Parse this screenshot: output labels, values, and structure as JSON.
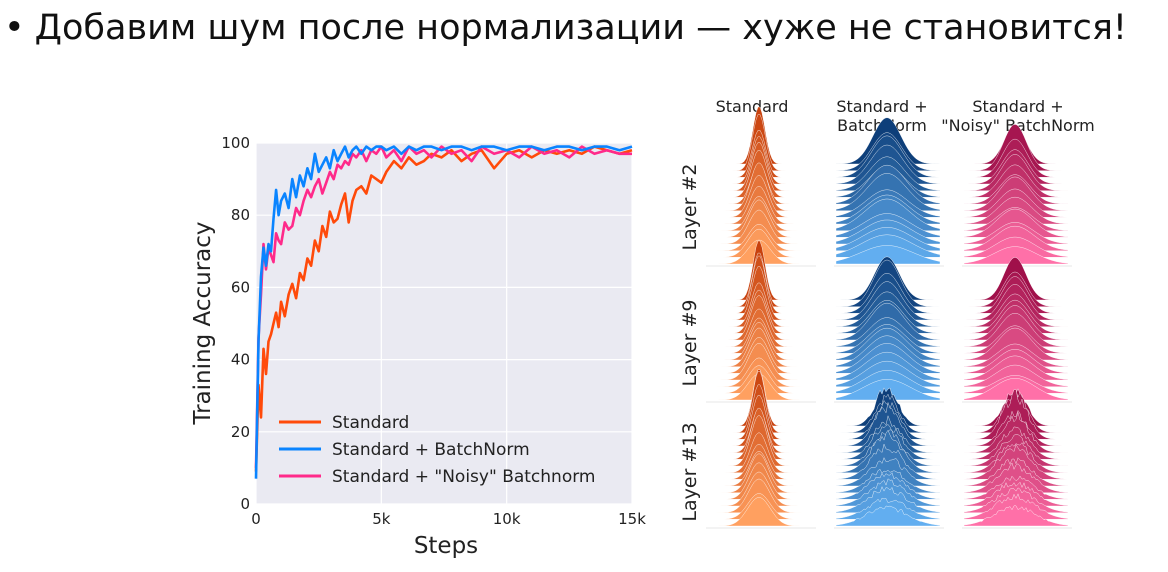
{
  "slide": {
    "title": "Добавим шум после нормализации — хуже не становится!"
  },
  "colors": {
    "standard": "#ff4a0a",
    "batchnorm": "#0a84ff",
    "noisy": "#ff2a8a",
    "plot_bg": "#eaeaf2",
    "grid": "#ffffff"
  },
  "chart_data": [
    {
      "type": "line",
      "title": "",
      "xlabel": "Steps",
      "ylabel": "Training Accuracy",
      "xlim": [
        0,
        15000
      ],
      "ylim": [
        0,
        100
      ],
      "xticks": [
        {
          "value": 0,
          "label": "0"
        },
        {
          "value": 5000,
          "label": "5k"
        },
        {
          "value": 10000,
          "label": "10k"
        },
        {
          "value": 15000,
          "label": "15k"
        }
      ],
      "yticks": [
        0,
        20,
        40,
        60,
        80,
        100
      ],
      "grid": true,
      "legend": "bottom-left",
      "series": [
        {
          "name": "Standard",
          "color": "#ff4a0a",
          "x": [
            0,
            100,
            200,
            300,
            400,
            500,
            600,
            700,
            800,
            900,
            1000,
            1150,
            1300,
            1450,
            1600,
            1750,
            1900,
            2050,
            2200,
            2350,
            2500,
            2650,
            2800,
            2950,
            3100,
            3250,
            3400,
            3550,
            3700,
            3850,
            4000,
            4200,
            4400,
            4600,
            4800,
            5000,
            5200,
            5500,
            5800,
            6100,
            6400,
            6700,
            7000,
            7400,
            7800,
            8200,
            8600,
            9000,
            9500,
            10000,
            10500,
            11000,
            11500,
            12000,
            12500,
            13000,
            13500,
            14000,
            14500,
            15000
          ],
          "y": [
            9,
            33,
            24,
            43,
            36,
            45,
            47,
            50,
            53,
            49,
            56,
            52,
            58,
            61,
            57,
            64,
            62,
            68,
            66,
            73,
            70,
            77,
            74,
            81,
            78,
            79,
            83,
            86,
            78,
            84,
            87,
            88,
            86,
            91,
            90,
            89,
            92,
            95,
            93,
            96,
            94,
            95,
            97,
            96,
            98,
            95,
            97,
            98,
            93,
            97,
            98,
            96,
            98,
            97,
            98,
            97,
            99,
            98,
            97,
            98
          ]
        },
        {
          "name": "Standard + BatchNorm",
          "color": "#0a84ff",
          "x": [
            0,
            100,
            200,
            300,
            400,
            500,
            600,
            700,
            800,
            900,
            1000,
            1150,
            1300,
            1450,
            1600,
            1750,
            1900,
            2050,
            2200,
            2350,
            2500,
            2650,
            2800,
            2950,
            3100,
            3250,
            3400,
            3550,
            3700,
            3850,
            4000,
            4200,
            4400,
            4600,
            4800,
            5000,
            5200,
            5500,
            5800,
            6100,
            6400,
            6700,
            7000,
            7400,
            7800,
            8200,
            8600,
            9000,
            9500,
            10000,
            10500,
            11000,
            11500,
            12000,
            12500,
            13000,
            13500,
            14000,
            14500,
            15000
          ],
          "y": [
            7,
            45,
            63,
            71,
            66,
            72,
            70,
            79,
            87,
            80,
            84,
            86,
            82,
            90,
            85,
            91,
            88,
            93,
            90,
            97,
            92,
            94,
            96,
            93,
            98,
            95,
            97,
            99,
            96,
            98,
            99,
            97,
            99,
            98,
            99,
            99,
            98,
            99,
            97,
            99,
            98,
            99,
            99,
            98,
            99,
            99,
            98,
            99,
            99,
            98,
            99,
            99,
            98,
            99,
            99,
            98,
            99,
            99,
            98,
            99
          ]
        },
        {
          "name": "Standard + \"Noisy\" Batchnorm",
          "color": "#ff2a8a",
          "x": [
            0,
            100,
            200,
            300,
            400,
            500,
            600,
            700,
            800,
            900,
            1000,
            1150,
            1300,
            1450,
            1600,
            1750,
            1900,
            2050,
            2200,
            2350,
            2500,
            2650,
            2800,
            2950,
            3100,
            3250,
            3400,
            3550,
            3700,
            3850,
            4000,
            4200,
            4400,
            4600,
            4800,
            5000,
            5200,
            5500,
            5800,
            6100,
            6400,
            6700,
            7000,
            7400,
            7800,
            8200,
            8600,
            9000,
            9500,
            10000,
            10500,
            11000,
            11500,
            12000,
            12500,
            13000,
            13500,
            14000,
            14500,
            15000
          ],
          "y": [
            10,
            46,
            58,
            72,
            65,
            71,
            69,
            67,
            75,
            73,
            72,
            78,
            76,
            77,
            82,
            80,
            84,
            87,
            85,
            88,
            90,
            86,
            89,
            92,
            90,
            94,
            93,
            95,
            94,
            97,
            96,
            98,
            95,
            98,
            97,
            99,
            96,
            98,
            95,
            99,
            97,
            98,
            96,
            99,
            97,
            98,
            95,
            99,
            97,
            98,
            96,
            99,
            97,
            98,
            96,
            99,
            97,
            98,
            97,
            97
          ]
        }
      ]
    },
    {
      "type": "other",
      "description_free": true,
      "columns": [
        "Standard",
        "Standard + BatchNorm",
        "Standard + \"Noisy\" BatchNorm"
      ],
      "column_lines": [
        [
          "Standard"
        ],
        [
          "Standard +",
          "BatchNorm"
        ],
        [
          "Standard +",
          "\"Noisy\" BatchNorm"
        ]
      ],
      "rows": [
        "Layer #2",
        "Layer #9",
        "Layer #13"
      ],
      "column_colors": [
        [
          "#c8420e",
          "#ffa060"
        ],
        [
          "#0e3f7a",
          "#62aef0"
        ],
        [
          "#a0104a",
          "#ff70a8"
        ]
      ]
    }
  ]
}
